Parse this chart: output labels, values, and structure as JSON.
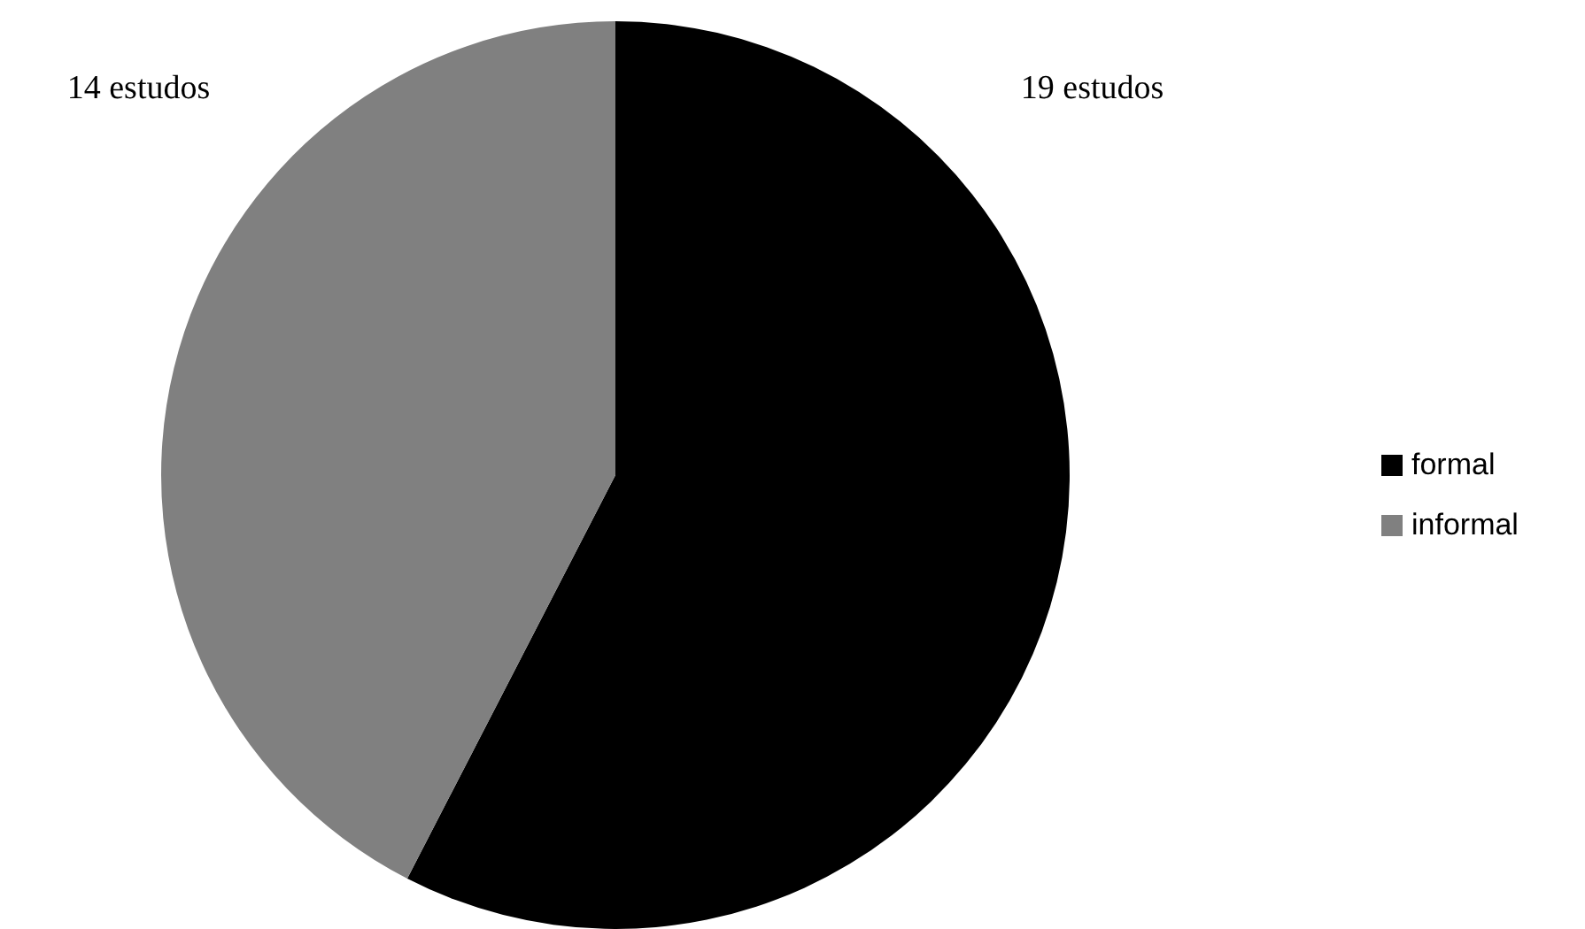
{
  "chart_data": {
    "type": "pie",
    "categories": [
      "formal",
      "informal"
    ],
    "values": [
      19,
      14
    ],
    "colors": [
      "#000000",
      "#808080"
    ],
    "value_labels": [
      "19 estudos",
      "14 estudos"
    ],
    "legend": "right"
  }
}
